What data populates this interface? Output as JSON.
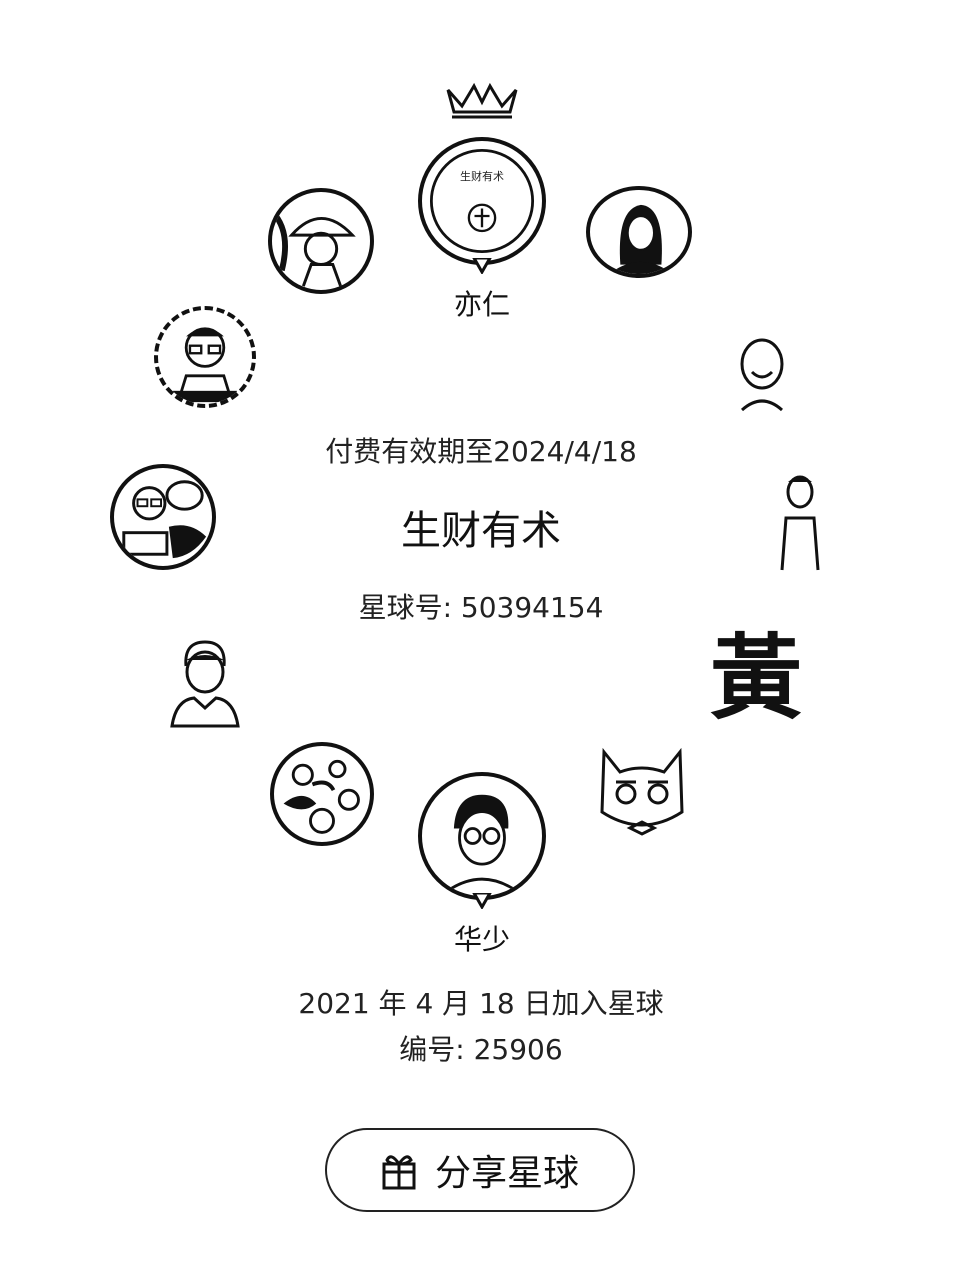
{
  "expiry_text": "付费有效期至2024/4/18",
  "group_name": "生财有术",
  "group_id_text": "星球号: 50394154",
  "owner": {
    "name": "亦仁",
    "badge_text": "生财有术"
  },
  "featured_member": {
    "name": "华少"
  },
  "join_text": "2021 年 4 月 18 日加入星球",
  "member_number_text": "编号: 25906",
  "share_button": {
    "label": "分享星球",
    "icon": "gift-icon"
  },
  "member_avatars": [
    {
      "icon": "cartoon-kid-avatar-icon"
    },
    {
      "icon": "woman-portrait-avatar-icon"
    },
    {
      "icon": "glasses-man-avatar-icon"
    },
    {
      "icon": "bald-man-avatar-icon"
    },
    {
      "icon": "reading-man-avatar-icon"
    },
    {
      "icon": "standing-man-avatar-icon"
    },
    {
      "icon": "default-person-avatar-icon"
    },
    {
      "icon": "calligraphy-avatar-icon",
      "text": "黃"
    },
    {
      "icon": "ornate-pattern-avatar-icon"
    },
    {
      "icon": "cat-avatar-icon"
    }
  ]
}
